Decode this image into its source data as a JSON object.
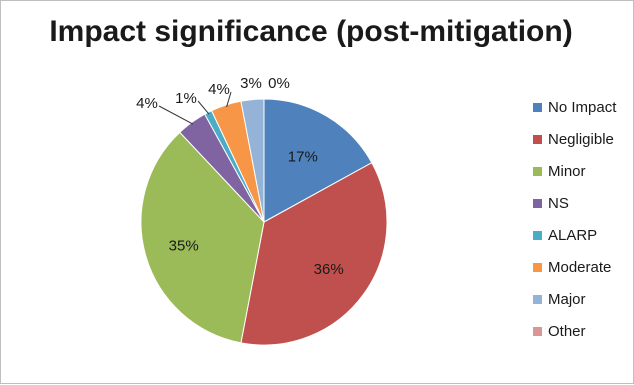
{
  "chart_data": {
    "type": "pie",
    "title": "Impact significance (post-mitigation)",
    "categories": [
      "No Impact",
      "Negligible",
      "Minor",
      "NS",
      "ALARP",
      "Moderate",
      "Major",
      "Other"
    ],
    "values": [
      17,
      36,
      35,
      4,
      1,
      4,
      3,
      0
    ],
    "labels": [
      "17%",
      "36%",
      "35%",
      "4%",
      "1%",
      "4%",
      "3%",
      "0%"
    ],
    "colors": [
      "#4f81bd",
      "#c0504d",
      "#9bbb59",
      "#8064a2",
      "#4bacc6",
      "#f79646",
      "#95b3d7",
      "#d99694"
    ],
    "legend_position": "right"
  }
}
